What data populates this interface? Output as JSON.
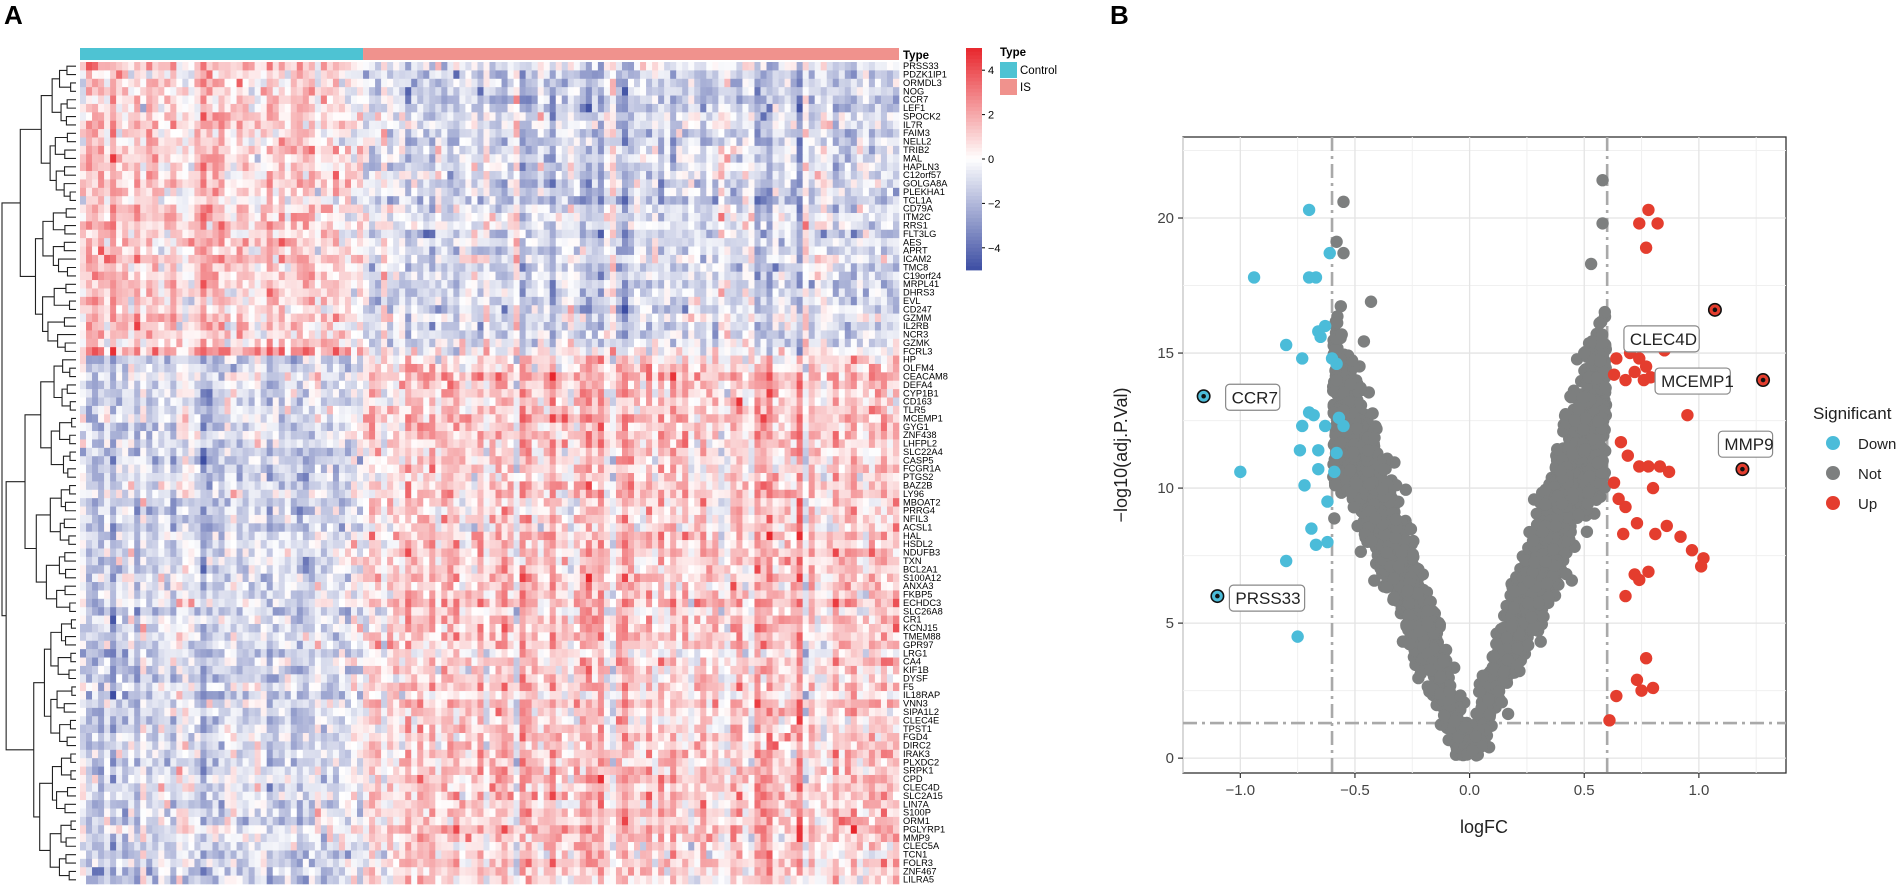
{
  "panels": {
    "a_label": "A",
    "b_label": "B"
  },
  "colors": {
    "control": "#4ec3d3",
    "is": "#f0928d",
    "down": "#4bbcd9",
    "not": "#7d7f7f",
    "up": "#e43d2e",
    "heat_low": "#3d4ea3",
    "heat_mid": "#ffffff",
    "heat_high": "#e8262c"
  },
  "chart_data": [
    {
      "type": "heatmap",
      "title": "",
      "annotation_title": "Type",
      "groups": [
        {
          "name": "Control",
          "count": 47
        },
        {
          "name": "IS",
          "count": 89
        }
      ],
      "legend": {
        "type_title": "Type",
        "entries": [
          "Control",
          "IS"
        ],
        "colorbar_ticks": [
          4,
          2,
          0,
          -2,
          -4
        ],
        "colorbar_labels": [
          "4",
          "2",
          "0",
          "−2",
          "−4"
        ],
        "range": [
          -5,
          5
        ]
      },
      "genes_up_in_control": [
        "PRSS33",
        "PDZK1IP1",
        "ORMDL3",
        "NOG",
        "CCR7",
        "LEF1",
        "SPOCK2",
        "IL7R",
        "FAIM3",
        "NELL2",
        "TRIB2",
        "MAL",
        "HAPLN3",
        "C12orf57",
        "GOLGA8A",
        "PLEKHA1",
        "TCL1A",
        "CD79A",
        "ITM2C",
        "RRS1",
        "FLT3LG",
        "AES",
        "APRT",
        "ICAM2",
        "TMC8",
        "C19orf24",
        "MRPL41",
        "DHRS3",
        "EVL",
        "CD247",
        "GZMM",
        "IL2RB",
        "NCR3",
        "GZMK",
        "FCRL3"
      ],
      "genes_up_in_is": [
        "HP",
        "OLFM4",
        "CEACAM8",
        "DEFA4",
        "CYP1B1",
        "CD163",
        "TLR5",
        "MCEMP1",
        "GYG1",
        "ZNF438",
        "LHFPL2",
        "SLC22A4",
        "CASP5",
        "FCGR1A",
        "PTGS2",
        "BAZ2B",
        "LY96",
        "MBOAT2",
        "PRRG4",
        "NFIL3",
        "ACSL1",
        "HAL",
        "HSDL2",
        "NDUFB3",
        "TXN",
        "BCL2A1",
        "S100A12",
        "ANXA3",
        "FKBP5",
        "ECHDC3",
        "SLC26A8",
        "CR1",
        "KCNJ15",
        "TMEM88",
        "GPR97",
        "LRG1",
        "CA4",
        "KIF1B",
        "DYSF",
        "F5",
        "IL18RAP",
        "VNN3",
        "SIPA1L2",
        "CLEC4E",
        "TPST1",
        "FGD4",
        "DIRC2",
        "IRAK3",
        "PLXDC2",
        "SRPK1",
        "CPD",
        "CLEC4D",
        "SLC2A15",
        "LIN7A",
        "S100P",
        "ORM1",
        "PGLYRP1",
        "MMP9",
        "CLEC5A",
        "TCN1",
        "FOLR3",
        "ZNF467",
        "LILRA5"
      ]
    },
    {
      "type": "scatter",
      "title": "",
      "xlabel": "logFC",
      "ylabel": "−log10(adj.P.Val)",
      "xlim": [
        -1.25,
        1.38
      ],
      "ylim": [
        -0.55,
        23
      ],
      "x_ticks": [
        -1.0,
        -0.5,
        0.0,
        0.5,
        1.0
      ],
      "x_tick_labels": [
        "−1.0",
        "−0.5",
        "0.0",
        "0.5",
        "1.0"
      ],
      "y_ticks": [
        0,
        5,
        10,
        15,
        20
      ],
      "y_tick_labels": [
        "0",
        "5",
        "10",
        "15",
        "20"
      ],
      "thresholds": {
        "logfc_low": -0.6,
        "logfc_high": 0.6,
        "neg_log10_p": 1.3
      },
      "legend_title": "Significant",
      "legend_entries": [
        "Down",
        "Not",
        "Up"
      ],
      "grid": true,
      "series": [
        {
          "name": "Down",
          "points": [
            [
              -0.7,
              20.3
            ],
            [
              -0.61,
              18.7
            ],
            [
              -0.67,
              17.8
            ],
            [
              -0.7,
              17.8
            ],
            [
              -0.94,
              17.8
            ],
            [
              -0.63,
              16.0
            ],
            [
              -0.65,
              15.6
            ],
            [
              -0.66,
              15.8
            ],
            [
              -0.8,
              15.3
            ],
            [
              -0.73,
              14.8
            ],
            [
              -0.58,
              14.6
            ],
            [
              -0.6,
              14.8
            ],
            [
              -0.55,
              12.3
            ],
            [
              -0.57,
              12.6
            ],
            [
              -0.63,
              12.3
            ],
            [
              -0.7,
              12.8
            ],
            [
              -0.68,
              12.7
            ],
            [
              -0.73,
              12.3
            ],
            [
              -0.66,
              11.4
            ],
            [
              -0.74,
              11.4
            ],
            [
              -0.66,
              10.7
            ],
            [
              -0.72,
              10.1
            ],
            [
              -0.62,
              9.5
            ],
            [
              -0.62,
              8.0
            ],
            [
              -0.67,
              7.9
            ],
            [
              -0.69,
              8.5
            ],
            [
              -0.59,
              10.6
            ],
            [
              -0.8,
              7.3
            ],
            [
              -1.0,
              10.6
            ],
            [
              -0.75,
              4.5
            ],
            [
              -0.58,
              11.3
            ],
            [
              -1.16,
              13.4
            ],
            [
              -1.1,
              6.0
            ]
          ]
        },
        {
          "name": "Up",
          "points": [
            [
              0.78,
              20.3
            ],
            [
              0.82,
              19.8
            ],
            [
              0.74,
              19.8
            ],
            [
              0.77,
              18.9
            ],
            [
              1.07,
              16.6
            ],
            [
              0.82,
              15.6
            ],
            [
              0.85,
              15.1
            ],
            [
              0.7,
              15.0
            ],
            [
              0.64,
              14.8
            ],
            [
              0.63,
              14.2
            ],
            [
              0.68,
              14.0
            ],
            [
              0.72,
              14.3
            ],
            [
              0.76,
              14.0
            ],
            [
              0.79,
              14.1
            ],
            [
              0.74,
              14.8
            ],
            [
              0.77,
              14.5
            ],
            [
              1.28,
              14.0
            ],
            [
              0.95,
              12.7
            ],
            [
              0.66,
              11.7
            ],
            [
              0.69,
              11.2
            ],
            [
              0.74,
              10.8
            ],
            [
              0.78,
              10.8
            ],
            [
              0.83,
              10.8
            ],
            [
              0.87,
              10.6
            ],
            [
              0.8,
              10.0
            ],
            [
              0.68,
              9.3
            ],
            [
              0.65,
              9.6
            ],
            [
              0.73,
              8.7
            ],
            [
              0.67,
              8.3
            ],
            [
              0.81,
              8.3
            ],
            [
              0.86,
              8.6
            ],
            [
              0.92,
              8.2
            ],
            [
              0.97,
              7.7
            ],
            [
              1.02,
              7.4
            ],
            [
              1.01,
              7.1
            ],
            [
              0.72,
              6.8
            ],
            [
              0.74,
              6.6
            ],
            [
              0.78,
              6.9
            ],
            [
              0.68,
              6.0
            ],
            [
              0.77,
              3.7
            ],
            [
              0.73,
              2.9
            ],
            [
              0.8,
              2.6
            ],
            [
              0.75,
              2.5
            ],
            [
              0.64,
              2.3
            ],
            [
              0.61,
              1.4
            ],
            [
              0.63,
              10.2
            ],
            [
              1.19,
              10.7
            ]
          ]
        }
      ],
      "not_summary": {
        "name": "Not",
        "count": 2300,
        "note": "dense V-shaped cloud of non-significant genes, -0.6 < logFC < 0.6"
      },
      "labels": [
        {
          "gene": "CCR7",
          "x": -1.16,
          "y": 13.4
        },
        {
          "gene": "PRSS33",
          "x": -1.1,
          "y": 6.0
        },
        {
          "gene": "CLEC4D",
          "x": 1.07,
          "y": 16.6
        },
        {
          "gene": "MCEMP1",
          "x": 1.28,
          "y": 14.0
        },
        {
          "gene": "MMP9",
          "x": 1.19,
          "y": 10.7
        }
      ]
    }
  ]
}
